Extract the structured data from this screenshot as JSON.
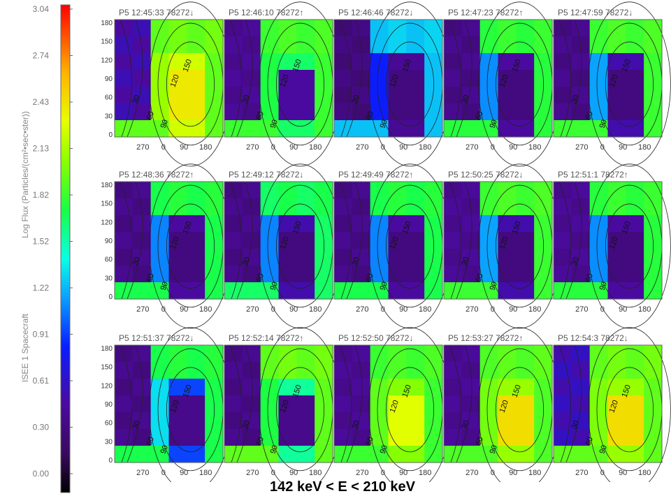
{
  "colorbar": {
    "label_spacecraft": "ISEE 1 Spacecraft",
    "label_flux": "Log Flux (Particles/(cm²•sec•ster))",
    "ticks": [
      "3.04",
      "2.74",
      "2.43",
      "2.13",
      "1.82",
      "1.52",
      "1.22",
      "0.91",
      "0.61",
      "0.30",
      "0.00"
    ],
    "vmin": 0.0,
    "vmax": 3.04
  },
  "caption": "142 keV < E < 210 keV",
  "chart_data": {
    "type": "heatmap",
    "x_ticks": [
      "270",
      "0",
      "90",
      "180"
    ],
    "y_ticks": [
      "180",
      "150",
      "120",
      "90",
      "60",
      "30",
      "0"
    ],
    "contour_labels": [
      "30",
      "60",
      "90",
      "120",
      "150"
    ],
    "panels": [
      {
        "title": "P5 12:45:33 78272↓",
        "bg": 1.95,
        "left_low": 0.55,
        "right_level": 2.25,
        "right_core": 2.4
      },
      {
        "title": "P5 12:46:10 78272↑",
        "bg": 1.85,
        "left_low": 0.45,
        "right_level": 1.7,
        "right_core": 0.55
      },
      {
        "title": "P5 12:46:46 78272↓",
        "bg": 1.3,
        "left_low": 0.35,
        "right_level": 0.5,
        "right_core": 0.4
      },
      {
        "title": "P5 12:47:23 78272↑",
        "bg": 1.8,
        "left_low": 0.4,
        "right_level": 0.55,
        "right_core": 0.4
      },
      {
        "title": "P5 12:47:59 78272↓",
        "bg": 1.85,
        "left_low": 0.4,
        "right_level": 0.6,
        "right_core": 0.4
      },
      {
        "title": "P5 12:48:36 78272↑",
        "bg": 1.75,
        "left_low": 0.4,
        "right_level": 0.55,
        "right_core": 0.4
      },
      {
        "title": "P5 12:49:12 78272↓",
        "bg": 1.7,
        "left_low": 0.4,
        "right_level": 0.6,
        "right_core": 0.4
      },
      {
        "title": "P5 12:49:49 78272↑",
        "bg": 1.75,
        "left_low": 0.4,
        "right_level": 0.55,
        "right_core": 0.4
      },
      {
        "title": "P5 12:50:25 78272↓",
        "bg": 1.85,
        "left_low": 0.45,
        "right_level": 0.6,
        "right_core": 0.4
      },
      {
        "title": "P5 12:51:1 78272↑",
        "bg": 1.8,
        "left_low": 0.45,
        "right_level": 0.55,
        "right_core": 0.4
      },
      {
        "title": "P5 12:51:37 78272↓",
        "bg": 1.75,
        "left_low": 0.4,
        "right_level": 1.0,
        "right_core": 0.45
      },
      {
        "title": "P5 12:52:14 78272↑",
        "bg": 1.95,
        "left_low": 0.4,
        "right_level": 1.6,
        "right_core": 0.45
      },
      {
        "title": "P5 12:52:50 78272↓",
        "bg": 1.85,
        "left_low": 0.45,
        "right_level": 2.05,
        "right_core": 2.3
      },
      {
        "title": "P5 12:53:27 78272↑",
        "bg": 1.9,
        "left_low": 0.45,
        "right_level": 2.1,
        "right_core": 2.45
      },
      {
        "title": "P5 12:54:3 78272↓",
        "bg": 1.95,
        "left_low": 0.6,
        "right_level": 2.1,
        "right_core": 2.45
      }
    ]
  }
}
